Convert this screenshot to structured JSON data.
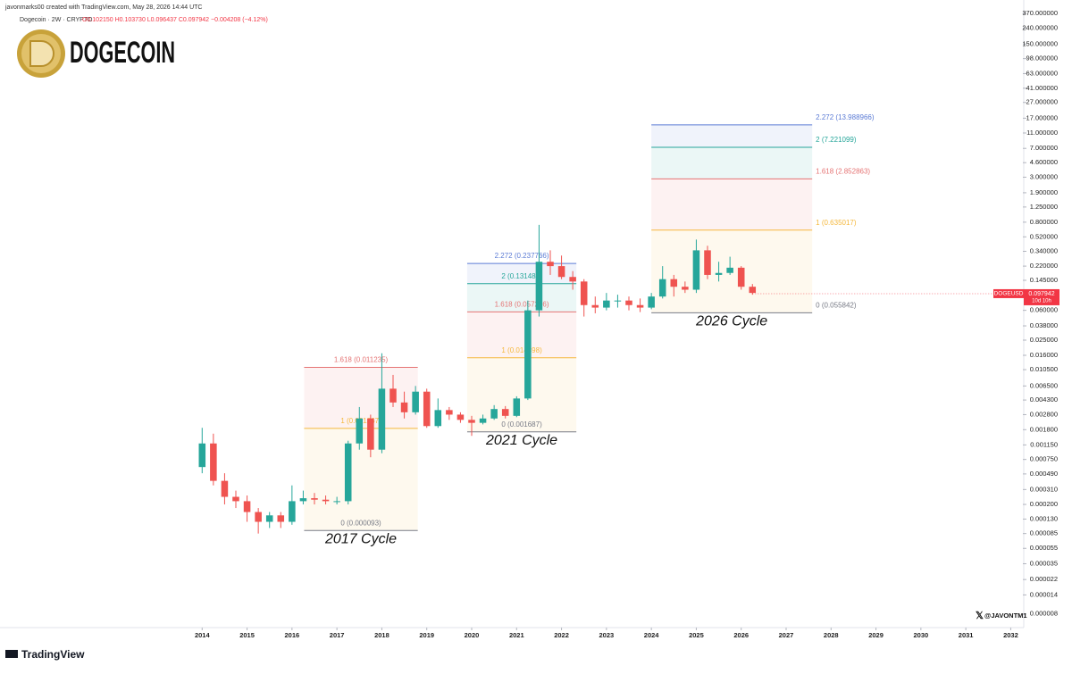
{
  "header": {
    "credit": "javonmarks00 created with TradingView.com, May 28, 2026 14:44 UTC",
    "symbol_line": "Dogecoin · 2W · CRYPTO",
    "ohlc_line": "O0.102150 H0.103730 L0.096437 C0.097942 −0.004208 (−4.12%)",
    "logo_text": "DOGECOIN"
  },
  "footer": {
    "brand": "TradingView",
    "handle": "@JAVONTM1"
  },
  "chart_data": {
    "type": "candlestick",
    "log_scale": true,
    "up_color": "#26a69a",
    "down_color": "#ef5350",
    "xlim": [
      2009.5,
      2032.27
    ],
    "xticks": [
      2014,
      2015,
      2016,
      2017,
      2018,
      2019,
      2020,
      2021,
      2022,
      2023,
      2024,
      2025,
      2026,
      2027,
      2028,
      2029,
      2030,
      2031,
      2032
    ],
    "ylim": [
      5.8e-06,
      548
    ],
    "yticks": [
      {
        "value": 370,
        "label": "370.000000"
      },
      {
        "value": 240,
        "label": "240.000000"
      },
      {
        "value": 150,
        "label": "150.000000"
      },
      {
        "value": 98,
        "label": "98.000000"
      },
      {
        "value": 63,
        "label": "63.000000"
      },
      {
        "value": 41,
        "label": "41.000000"
      },
      {
        "value": 27,
        "label": "27.000000"
      },
      {
        "value": 17,
        "label": "17.000000"
      },
      {
        "value": 11,
        "label": "11.000000"
      },
      {
        "value": 7,
        "label": "7.000000"
      },
      {
        "value": 4.6,
        "label": "4.600000"
      },
      {
        "value": 3,
        "label": "3.000000"
      },
      {
        "value": 1.9,
        "label": "1.900000"
      },
      {
        "value": 1.25,
        "label": "1.250000"
      },
      {
        "value": 0.8,
        "label": "0.800000"
      },
      {
        "value": 0.52,
        "label": "0.520000"
      },
      {
        "value": 0.34,
        "label": "0.340000"
      },
      {
        "value": 0.22,
        "label": "0.220000"
      },
      {
        "value": 0.145,
        "label": "0.145000"
      },
      {
        "value": 0.06,
        "label": "0.060000"
      },
      {
        "value": 0.038,
        "label": "0.038000"
      },
      {
        "value": 0.025,
        "label": "0.025000"
      },
      {
        "value": 0.016,
        "label": "0.016000"
      },
      {
        "value": 0.0105,
        "label": "0.010500"
      },
      {
        "value": 0.0065,
        "label": "0.006500"
      },
      {
        "value": 0.0043,
        "label": "0.004300"
      },
      {
        "value": 0.0028,
        "label": "0.002800"
      },
      {
        "value": 0.0018,
        "label": "0.001800"
      },
      {
        "value": 0.00115,
        "label": "0.001150"
      },
      {
        "value": 0.00075,
        "label": "0.000750"
      },
      {
        "value": 0.00049,
        "label": "0.000490"
      },
      {
        "value": 0.00031,
        "label": "0.000310"
      },
      {
        "value": 0.0002,
        "label": "0.000200"
      },
      {
        "value": 0.00013,
        "label": "0.000130"
      },
      {
        "value": 8.5e-05,
        "label": "0.000085"
      },
      {
        "value": 5.5e-05,
        "label": "0.000055"
      },
      {
        "value": 3.5e-05,
        "label": "0.000035"
      },
      {
        "value": 2.2e-05,
        "label": "0.000022"
      },
      {
        "value": 1.4e-05,
        "label": "0.000014"
      },
      {
        "value": 8e-06,
        "label": "0.000008"
      }
    ],
    "x": [
      2014.0,
      2014.25,
      2014.5,
      2014.75,
      2015.0,
      2015.25,
      2015.5,
      2015.75,
      2016.0,
      2016.25,
      2016.5,
      2016.75,
      2017.0,
      2017.25,
      2017.5,
      2017.75,
      2018.0,
      2018.25,
      2018.5,
      2018.75,
      2019.0,
      2019.25,
      2019.5,
      2019.75,
      2020.0,
      2020.25,
      2020.5,
      2020.75,
      2021.0,
      2021.25,
      2021.5,
      2021.75,
      2022.0,
      2022.25,
      2022.5,
      2022.75,
      2023.0,
      2023.25,
      2023.5,
      2023.75,
      2024.0,
      2024.25,
      2024.5,
      2024.75,
      2025.0,
      2025.25,
      2025.5,
      2025.75,
      2026.0,
      2026.25
    ],
    "open": [
      0.0006,
      0.0012,
      0.0004,
      0.00025,
      0.00022,
      0.00016,
      0.00012,
      0.000145,
      0.00012,
      0.00022,
      0.00024,
      0.00023,
      0.00022,
      0.00022,
      0.0012,
      0.0025,
      0.001,
      0.006,
      0.004,
      0.003,
      0.0055,
      0.002,
      0.0032,
      0.0028,
      0.0024,
      0.0022,
      0.0025,
      0.0033,
      0.0027,
      0.0045,
      0.06,
      0.25,
      0.22,
      0.16,
      0.14,
      0.07,
      0.065,
      0.08,
      0.08,
      0.07,
      0.065,
      0.09,
      0.15,
      0.12,
      0.11,
      0.35,
      0.17,
      0.18,
      0.21,
      0.12
    ],
    "high": [
      0.0019,
      0.0016,
      0.0005,
      0.0003,
      0.00026,
      0.00018,
      0.00016,
      0.00016,
      0.00035,
      0.0003,
      0.00028,
      0.00026,
      0.00025,
      0.0013,
      0.0035,
      0.0028,
      0.017,
      0.009,
      0.0055,
      0.0065,
      0.006,
      0.0045,
      0.0035,
      0.003,
      0.0027,
      0.0028,
      0.0037,
      0.0036,
      0.0048,
      0.08,
      0.74,
      0.35,
      0.3,
      0.19,
      0.15,
      0.09,
      0.1,
      0.095,
      0.09,
      0.085,
      0.1,
      0.22,
      0.17,
      0.14,
      0.48,
      0.4,
      0.25,
      0.29,
      0.22,
      0.13
    ],
    "low": [
      0.0005,
      0.00035,
      0.0002,
      0.00018,
      0.00012,
      8.5e-05,
      0.0001,
      0.0001,
      0.00011,
      0.0002,
      0.0002,
      0.0002,
      0.0002,
      0.0002,
      0.001,
      0.0008,
      0.0009,
      0.0035,
      0.0025,
      0.0028,
      0.0019,
      0.0019,
      0.0024,
      0.0022,
      0.0015,
      0.0021,
      0.0024,
      0.0025,
      0.0026,
      0.0043,
      0.05,
      0.17,
      0.15,
      0.11,
      0.05,
      0.055,
      0.06,
      0.065,
      0.06,
      0.057,
      0.062,
      0.085,
      0.09,
      0.1,
      0.1,
      0.15,
      0.14,
      0.17,
      0.11,
      0.095
    ],
    "close": [
      0.0012,
      0.0004,
      0.00025,
      0.00022,
      0.00016,
      0.00012,
      0.000145,
      0.00012,
      0.00022,
      0.00024,
      0.00023,
      0.00022,
      0.00022,
      0.0012,
      0.0025,
      0.001,
      0.006,
      0.004,
      0.003,
      0.0055,
      0.002,
      0.0032,
      0.0028,
      0.0024,
      0.0022,
      0.0025,
      0.0033,
      0.0027,
      0.0045,
      0.06,
      0.25,
      0.22,
      0.16,
      0.14,
      0.07,
      0.065,
      0.08,
      0.08,
      0.07,
      0.065,
      0.09,
      0.15,
      0.12,
      0.11,
      0.35,
      0.17,
      0.18,
      0.21,
      0.12,
      0.1
    ],
    "fibs": [
      {
        "x": [
          2016.27,
          2018.8
        ],
        "label_side": "center",
        "caption": "2017 Cycle",
        "levels": [
          {
            "value": 9.3e-05,
            "label": "0 (0.000093)",
            "color": "#787b86"
          },
          {
            "value": 0.001867,
            "label": "1 (0.001867)",
            "color": "#f5b83d"
          },
          {
            "value": 0.011235,
            "label": "1.618 (0.011235)",
            "color": "#e57373"
          }
        ]
      },
      {
        "x": [
          2019.9,
          2022.33
        ],
        "label_side": "center",
        "caption": "2021 Cycle",
        "levels": [
          {
            "value": 0.001687,
            "label": "0 (0.001687)",
            "color": "#787b86"
          },
          {
            "value": 0.014898,
            "label": "1 (0.014898)",
            "color": "#f5b83d"
          },
          {
            "value": 0.057226,
            "label": "1.618 (0.057226)",
            "color": "#e57373"
          },
          {
            "value": 0.131483,
            "label": "2 (0.131483)",
            "color": "#26a69a"
          },
          {
            "value": 0.237766,
            "label": "2.272 (0.237766)",
            "color": "#5b7bd5"
          }
        ]
      },
      {
        "x": [
          2024.0,
          2027.58
        ],
        "label_side": "right",
        "caption": "2026 Cycle",
        "levels": [
          {
            "value": 0.055842,
            "label": "0 (0.055842)",
            "color": "#787b86"
          },
          {
            "value": 0.635017,
            "label": "1 (0.635017)",
            "color": "#f5b83d"
          },
          {
            "value": 2.852863,
            "label": "1.618 (2.852863)",
            "color": "#e57373"
          },
          {
            "value": 7.221099,
            "label": "2 (7.221099)",
            "color": "#26a69a"
          },
          {
            "value": 13.988966,
            "label": "2.272 (13.988966)",
            "color": "#5b7bd5"
          }
        ]
      }
    ],
    "last_price": {
      "symbol": "DOGEUSD",
      "value": 0.097942,
      "label": "0.097942",
      "countdown": "10d 10h",
      "color": "#f23645"
    }
  }
}
